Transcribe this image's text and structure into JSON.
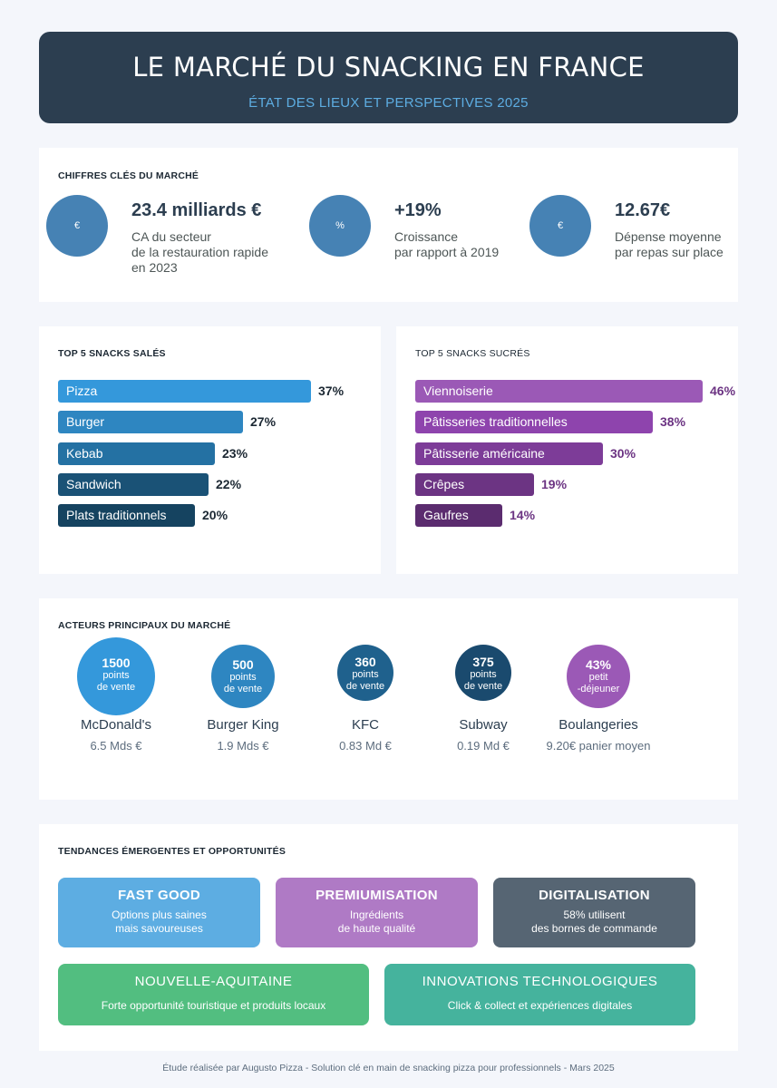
{
  "header": {
    "title": "LE MARCHÉ DU SNACKING EN FRANCE",
    "subtitle": "ÉTAT DES LIEUX ET PERSPECTIVES 2025"
  },
  "key_figures": {
    "title": "CHIFFRES CLÉS DU MARCHÉ",
    "items": [
      {
        "icon": "€",
        "value": "23.4 milliards €",
        "desc1": "CA du secteur",
        "desc2": "de la restauration rapide",
        "desc3": "en 2023"
      },
      {
        "icon": "%",
        "value": "+19%",
        "desc1": "Croissance",
        "desc2": "par rapport à 2019"
      },
      {
        "icon": "€",
        "value": "12.67€",
        "desc1": "Dépense moyenne",
        "desc2": "par repas sur place"
      }
    ]
  },
  "salty": {
    "title": "TOP 5 SNACKS SALÉS",
    "items": [
      {
        "label": "Pizza",
        "pct": "37%",
        "value": 37,
        "color": "#3498db"
      },
      {
        "label": "Burger",
        "pct": "27%",
        "value": 27,
        "color": "#2e86c1"
      },
      {
        "label": "Kebab",
        "pct": "23%",
        "value": 23,
        "color": "#2471a3"
      },
      {
        "label": "Sandwich",
        "pct": "22%",
        "value": 22,
        "color": "#1a5276"
      },
      {
        "label": "Plats traditionnels",
        "pct": "20%",
        "value": 20,
        "color": "#154360"
      }
    ],
    "pct_color": "#1c2833"
  },
  "sweet": {
    "title": "TOP 5 SNACKS SUCRÉS",
    "items": [
      {
        "label": "Viennoiserie",
        "pct": "46%",
        "value": 46,
        "color": "#9b59b6"
      },
      {
        "label": "Pâtisseries traditionnelles",
        "pct": "38%",
        "value": 38,
        "color": "#8e44ad"
      },
      {
        "label": "Pâtisserie américaine",
        "pct": "30%",
        "value": 30,
        "color": "#7d3c98"
      },
      {
        "label": "Crêpes",
        "pct": "19%",
        "value": 19,
        "color": "#6c3483"
      },
      {
        "label": "Gaufres",
        "pct": "14%",
        "value": 14,
        "color": "#5b2c6f"
      }
    ],
    "pct_color": "#6c3483"
  },
  "actors": {
    "title": "ACTEURS PRINCIPAUX DU MARCHÉ",
    "items": [
      {
        "count": "1500",
        "unit1": "points",
        "unit2": "de vente",
        "name": "McDonald's",
        "stat": "6.5 Mds €",
        "color": "#3498db"
      },
      {
        "count": "500",
        "unit1": "points",
        "unit2": "de vente",
        "name": "Burger King",
        "stat": "1.9 Mds €",
        "color": "#2e86c1"
      },
      {
        "count": "360",
        "unit1": "points",
        "unit2": "de vente",
        "name": "KFC",
        "stat": "0.83 Md €",
        "color": "#1f618d"
      },
      {
        "count": "375",
        "unit1": "points",
        "unit2": "de vente",
        "name": "Subway",
        "stat": "0.19 Md €",
        "color": "#1a4a6e"
      },
      {
        "count": "43%",
        "unit1": "petit",
        "unit2": "-déjeuner",
        "name": "Boulangeries",
        "stat": "9.20€ panier moyen",
        "color": "#9b59b6"
      }
    ]
  },
  "trends": {
    "title": "TENDANCES ÉMERGENTES ET OPPORTUNITÉS",
    "items": [
      {
        "title": "FAST GOOD",
        "desc1": "Options plus saines",
        "desc2": "mais savoureuses",
        "color": "#5dade2"
      },
      {
        "title": "PREMIUMISATION",
        "desc1": "Ingrédients",
        "desc2": "de haute qualité",
        "color": "#af7ac5"
      },
      {
        "title": "DIGITALISATION",
        "desc1": "58% utilisent",
        "desc2": "des bornes de commande",
        "color": "#566573"
      },
      {
        "title": "NOUVELLE-AQUITAINE",
        "desc1": "Forte opportunité touristique et produits locaux",
        "color": "#52be80"
      },
      {
        "title": "INNOVATIONS TECHNOLOGIQUES",
        "desc1": "Click & collect et expériences digitales",
        "color": "#45b39d"
      }
    ]
  },
  "footer": "Étude réalisée par Augusto Pizza - Solution clé en main de snacking pizza pour professionnels - Mars 2025"
}
